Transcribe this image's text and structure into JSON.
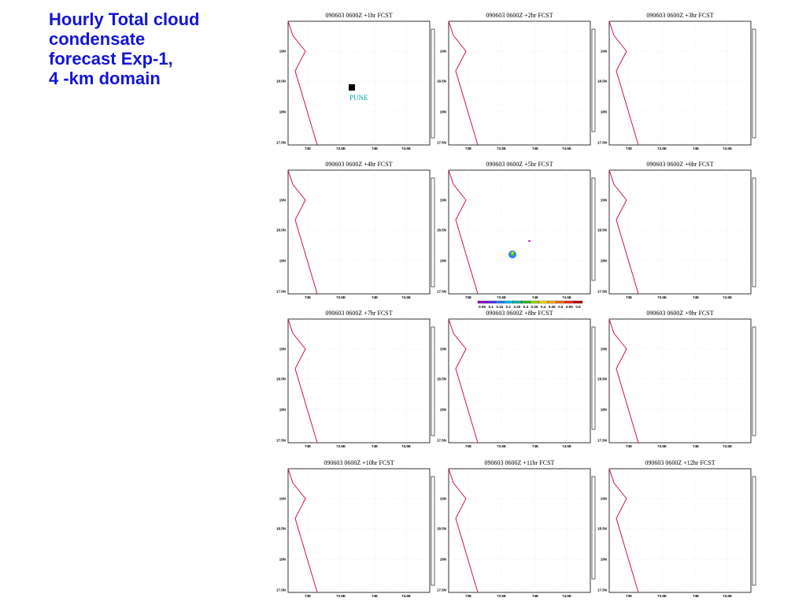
{
  "title_lines": [
    "Hourly Total cloud",
    "condensate",
    "forecast Exp-1,",
    "4 -km domain"
  ],
  "panels": [
    {
      "title": "090603 0600Z +1hr FCST"
    },
    {
      "title": "090603 0600Z +2hr FCST"
    },
    {
      "title": "090603 0600Z +3hr FCST"
    },
    {
      "title": "090603 0600Z +4hr FCST"
    },
    {
      "title": "090603 0600Z +5hr FCST"
    },
    {
      "title": "090603 0600Z +6hr FCST"
    },
    {
      "title": "090603 0600Z +7hr FCST"
    },
    {
      "title": "090603 0600Z +8hr FCST"
    },
    {
      "title": "090603 0600Z +9hr FCST"
    },
    {
      "title": "090603 0600Z +10hr FCST"
    },
    {
      "title": "090603 0600Z +11hr FCST"
    },
    {
      "title": "090603 0600Z +12hr FCST"
    }
  ],
  "axes": {
    "y_labels": [
      "19N",
      "18.5N",
      "18N",
      "17.5N"
    ],
    "x_labels": [
      "73E",
      "73.5E",
      "74E",
      "74.5E"
    ]
  },
  "pune_label": "PUNE",
  "colorbar": {
    "labels": [
      "0.05",
      "0.1",
      "0.15",
      "0.2",
      "0.25",
      "0.3",
      "0.35",
      "0.4",
      "0.45",
      "0.5",
      "0.55",
      "0.6"
    ]
  }
}
